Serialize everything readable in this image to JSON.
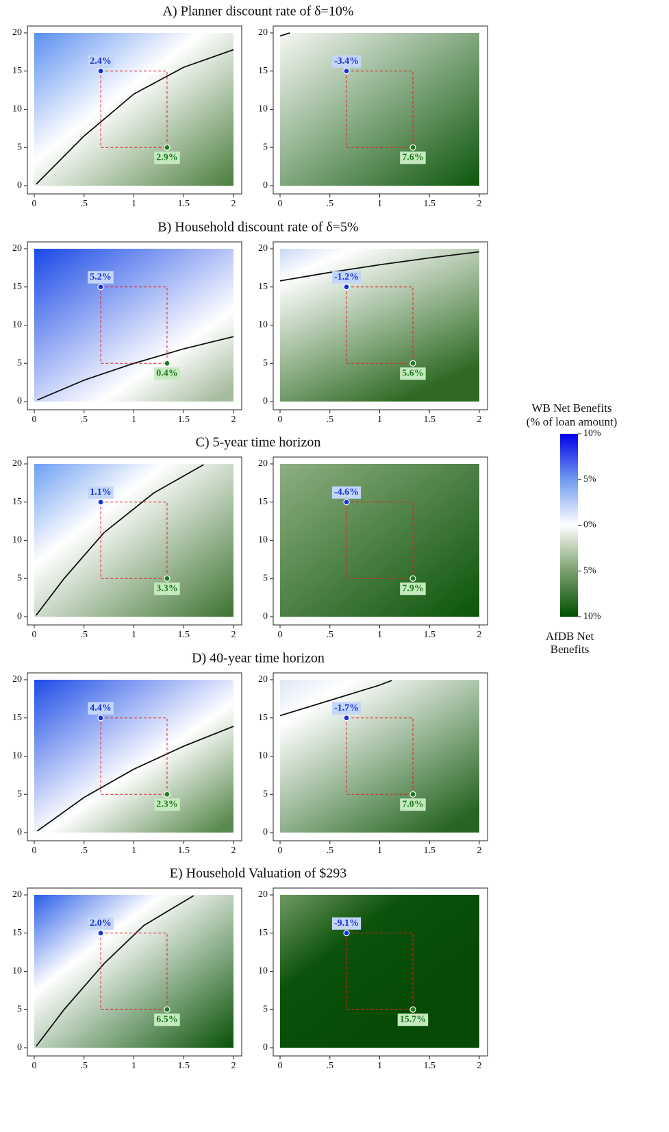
{
  "chart_data": [
    {
      "type": "scatter",
      "title": "A) Planner discount rate of δ=10%",
      "points": {
        "x": [
          0.667,
          1.333
        ],
        "y": [
          15,
          5
        ],
        "values": [
          2.4,
          2.9
        ],
        "value_labels": [
          "2.4%",
          "2.9%"
        ],
        "colors": [
          "#1530d8",
          "#1e7a1e"
        ]
      },
      "contour": {
        "x": [
          0.02,
          0.5,
          1,
          1.5,
          2
        ],
        "y": [
          0.2,
          6.5,
          12,
          15.5,
          17.8
        ]
      },
      "xlim": [
        0,
        2
      ],
      "ylim": [
        0,
        20
      ],
      "xticks": [
        0,
        {
          "value": 0.5,
          "label": ".5"
        },
        1,
        1.5,
        2
      ],
      "yticks": [
        0,
        5,
        10,
        15,
        20
      ]
    },
    {
      "type": "scatter",
      "points": {
        "x": [
          0.667,
          1.333
        ],
        "y": [
          15,
          5
        ],
        "values": [
          -3.4,
          7.6
        ],
        "value_labels": [
          "-3.4%",
          "7.6%"
        ],
        "colors": [
          "#1530d8",
          "#1e7a1e"
        ]
      },
      "contour": {
        "x": [
          0,
          0.1
        ],
        "y": [
          19.6,
          20
        ]
      },
      "xlim": [
        0,
        2
      ],
      "ylim": [
        0,
        20
      ],
      "xticks": [
        0,
        {
          "value": 0.5,
          "label": ".5"
        },
        1,
        1.5,
        2
      ],
      "yticks": [
        0,
        5,
        10,
        15,
        20
      ]
    },
    {
      "type": "scatter",
      "title": "B) Household discount rate of δ=5%",
      "points": {
        "x": [
          0.667,
          1.333
        ],
        "y": [
          15,
          5
        ],
        "values": [
          5.2,
          0.4
        ],
        "value_labels": [
          "5.2%",
          "0.4%"
        ],
        "colors": [
          "#1530d8",
          "#1e7a1e"
        ]
      },
      "contour": {
        "x": [
          0.03,
          0.5,
          1,
          1.5,
          2
        ],
        "y": [
          0.2,
          2.8,
          5,
          6.9,
          8.5
        ]
      },
      "xlim": [
        0,
        2
      ],
      "ylim": [
        0,
        20
      ],
      "xticks": [
        0,
        {
          "value": 0.5,
          "label": ".5"
        },
        1,
        1.5,
        2
      ],
      "yticks": [
        0,
        5,
        10,
        15,
        20
      ]
    },
    {
      "type": "scatter",
      "points": {
        "x": [
          0.667,
          1.333
        ],
        "y": [
          15,
          5
        ],
        "values": [
          -1.2,
          5.6
        ],
        "value_labels": [
          "-1.2%",
          "5.6%"
        ],
        "colors": [
          "#1530d8",
          "#1e7a1e"
        ]
      },
      "contour": {
        "x": [
          0,
          0.5,
          1,
          1.5,
          2
        ],
        "y": [
          15.8,
          16.9,
          17.9,
          18.8,
          19.6
        ]
      },
      "xlim": [
        0,
        2
      ],
      "ylim": [
        0,
        20
      ],
      "xticks": [
        0,
        {
          "value": 0.5,
          "label": ".5"
        },
        1,
        1.5,
        2
      ],
      "yticks": [
        0,
        5,
        10,
        15,
        20
      ]
    },
    {
      "type": "scatter",
      "title": "C) 5-year time horizon",
      "points": {
        "x": [
          0.667,
          1.333
        ],
        "y": [
          15,
          5
        ],
        "values": [
          1.1,
          3.3
        ],
        "value_labels": [
          "1.1%",
          "3.3%"
        ],
        "colors": [
          "#1530d8",
          "#1e7a1e"
        ]
      },
      "contour": {
        "x": [
          0.02,
          0.3,
          0.7,
          1.2,
          1.7
        ],
        "y": [
          0.2,
          5,
          11,
          16.2,
          19.9
        ]
      },
      "xlim": [
        0,
        2
      ],
      "ylim": [
        0,
        20
      ],
      "xticks": [
        0,
        {
          "value": 0.5,
          "label": ".5"
        },
        1,
        1.5,
        2
      ],
      "yticks": [
        0,
        5,
        10,
        15,
        20
      ]
    },
    {
      "type": "scatter",
      "points": {
        "x": [
          0.667,
          1.333
        ],
        "y": [
          15,
          5
        ],
        "values": [
          -4.6,
          7.9
        ],
        "value_labels": [
          "-4.6%",
          "7.9%"
        ],
        "colors": [
          "#1530d8",
          "#1e7a1e"
        ]
      },
      "xlim": [
        0,
        2
      ],
      "ylim": [
        0,
        20
      ],
      "xticks": [
        0,
        {
          "value": 0.5,
          "label": ".5"
        },
        1,
        1.5,
        2
      ],
      "yticks": [
        0,
        5,
        10,
        15,
        20
      ]
    },
    {
      "type": "scatter",
      "title": "D) 40-year time horizon",
      "points": {
        "x": [
          0.667,
          1.333
        ],
        "y": [
          15,
          5
        ],
        "values": [
          4.4,
          2.3
        ],
        "value_labels": [
          "4.4%",
          "2.3%"
        ],
        "colors": [
          "#1530d8",
          "#1e7a1e"
        ]
      },
      "contour": {
        "x": [
          0.03,
          0.5,
          1,
          1.5,
          2
        ],
        "y": [
          0.2,
          4.6,
          8.3,
          11.3,
          13.9
        ]
      },
      "xlim": [
        0,
        2
      ],
      "ylim": [
        0,
        20
      ],
      "xticks": [
        0,
        {
          "value": 0.5,
          "label": ".5"
        },
        1,
        1.5,
        2
      ],
      "yticks": [
        0,
        5,
        10,
        15,
        20
      ]
    },
    {
      "type": "scatter",
      "points": {
        "x": [
          0.667,
          1.333
        ],
        "y": [
          15,
          5
        ],
        "values": [
          -1.7,
          7.0
        ],
        "value_labels": [
          "-1.7%",
          "7.0%"
        ],
        "colors": [
          "#1530d8",
          "#1e7a1e"
        ]
      },
      "contour": {
        "x": [
          0,
          0.5,
          1,
          1.12
        ],
        "y": [
          15.3,
          17.3,
          19.3,
          19.9
        ]
      },
      "xlim": [
        0,
        2
      ],
      "ylim": [
        0,
        20
      ],
      "xticks": [
        0,
        {
          "value": 0.5,
          "label": ".5"
        },
        1,
        1.5,
        2
      ],
      "yticks": [
        0,
        5,
        10,
        15,
        20
      ]
    },
    {
      "type": "scatter",
      "title": "E) Household Valuation of $293",
      "points": {
        "x": [
          0.667,
          1.333
        ],
        "y": [
          15,
          5
        ],
        "values": [
          2.0,
          6.5
        ],
        "value_labels": [
          "2.0%",
          "6.5%"
        ],
        "colors": [
          "#1530d8",
          "#1e7a1e"
        ]
      },
      "contour": {
        "x": [
          0.02,
          0.3,
          0.7,
          1.1,
          1.6
        ],
        "y": [
          0.2,
          5,
          11,
          16,
          19.9
        ]
      },
      "xlim": [
        0,
        2
      ],
      "ylim": [
        0,
        20
      ],
      "xticks": [
        0,
        {
          "value": 0.5,
          "label": ".5"
        },
        1,
        1.5,
        2
      ],
      "yticks": [
        0,
        5,
        10,
        15,
        20
      ]
    },
    {
      "type": "scatter",
      "points": {
        "x": [
          0.667,
          1.333
        ],
        "y": [
          15,
          5
        ],
        "values": [
          -9.1,
          15.7
        ],
        "value_labels": [
          "-9.1%",
          "15.7%"
        ],
        "colors": [
          "#1530d8",
          "#1e7a1e"
        ]
      },
      "xlim": [
        0,
        2
      ],
      "ylim": [
        0,
        20
      ],
      "xticks": [
        0,
        {
          "value": 0.5,
          "label": ".5"
        },
        1,
        1.5,
        2
      ],
      "yticks": [
        0,
        5,
        10,
        15,
        20
      ]
    }
  ],
  "colorbar": {
    "title": [
      "WB Net Benefits",
      "(% of loan amount)"
    ],
    "footer": [
      "AfDB Net",
      "Benefits"
    ],
    "lim": [
      -10,
      10
    ],
    "ticks": [
      {
        "value": 10,
        "label": "10%"
      },
      {
        "value": 5,
        "label": "5%"
      },
      {
        "value": 0,
        "label": "0%"
      },
      {
        "value": -5,
        "label": "5%"
      },
      {
        "value": -10,
        "label": "10%"
      }
    ]
  }
}
